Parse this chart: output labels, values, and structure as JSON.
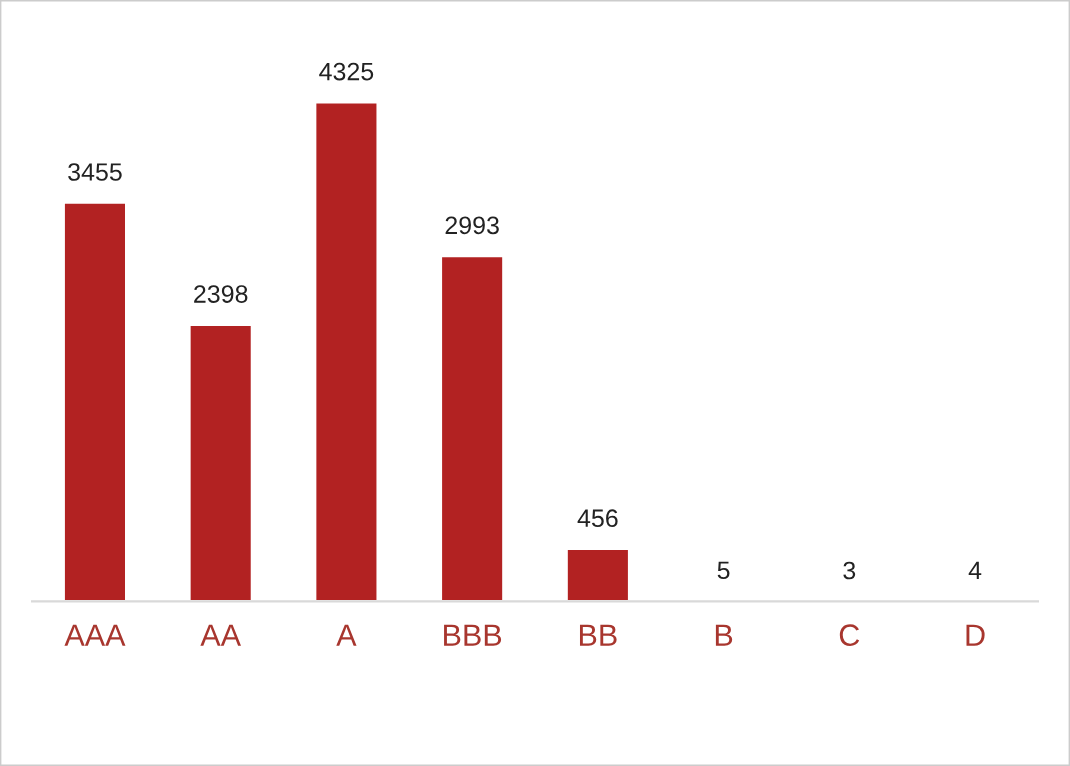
{
  "chart_data": {
    "type": "bar",
    "categories": [
      "AAA",
      "AA",
      "A",
      "BBB",
      "BB",
      "B",
      "C",
      "D"
    ],
    "values": [
      3455,
      2398,
      4325,
      2993,
      456,
      5,
      3,
      4
    ],
    "color": "#b22222",
    "data_labels": true,
    "grid": false,
    "legend": false
  }
}
